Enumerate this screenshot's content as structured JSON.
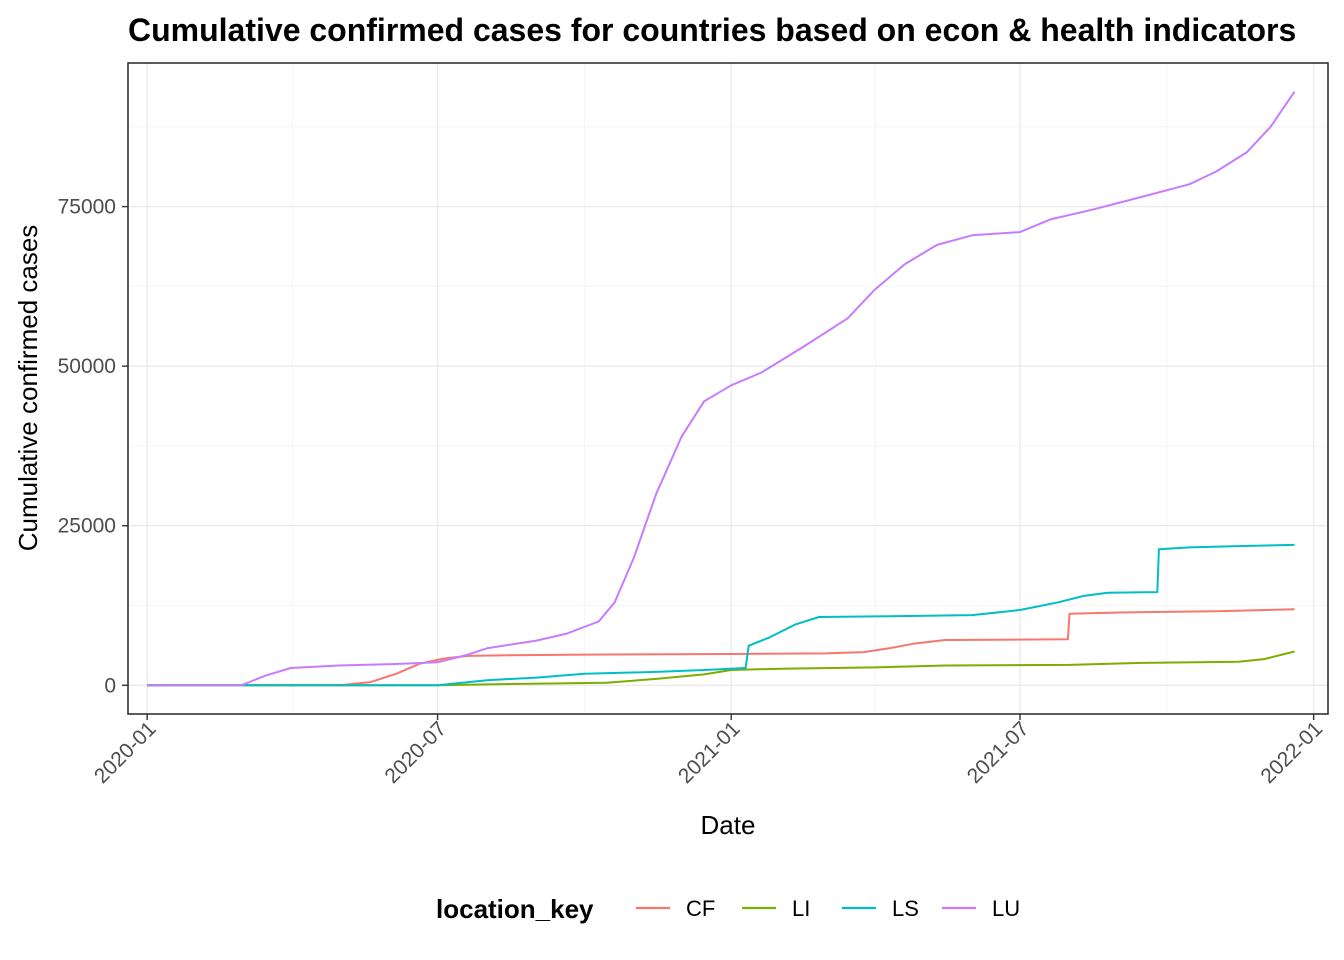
{
  "chart_data": {
    "type": "line",
    "title": "Cumulative confirmed cases for countries based on econ & health indicators",
    "xlabel": "Date",
    "ylabel": "Cumulative confirmed cases",
    "x_ticks": [
      "2020-01",
      "2020-07",
      "2021-01",
      "2021-07",
      "2022-01"
    ],
    "y_ticks": [
      0,
      25000,
      50000,
      75000
    ],
    "y_tick_labels": [
      "0",
      "25000",
      "50000",
      "75000"
    ],
    "xlim": [
      "2019-12-20",
      "2022-01-10"
    ],
    "ylim": [
      -4500,
      97500
    ],
    "grid": true,
    "legend": {
      "title": "location_key",
      "position": "bottom",
      "entries": [
        "CF",
        "LI",
        "LS",
        "LU"
      ]
    },
    "series": [
      {
        "name": "CF",
        "color": "#F8766D",
        "points": [
          [
            "2020-01-01",
            0
          ],
          [
            "2020-05-01",
            0
          ],
          [
            "2020-05-20",
            500
          ],
          [
            "2020-06-05",
            1800
          ],
          [
            "2020-06-20",
            3400
          ],
          [
            "2020-07-05",
            4200
          ],
          [
            "2020-07-20",
            4600
          ],
          [
            "2020-08-15",
            4700
          ],
          [
            "2020-10-01",
            4800
          ],
          [
            "2020-12-31",
            4900
          ],
          [
            "2021-03-01",
            5000
          ],
          [
            "2021-03-25",
            5200
          ],
          [
            "2021-04-10",
            5800
          ],
          [
            "2021-04-25",
            6500
          ],
          [
            "2021-05-15",
            7100
          ],
          [
            "2021-07-31",
            7200
          ],
          [
            "2021-08-01",
            11200
          ],
          [
            "2021-09-01",
            11400
          ],
          [
            "2021-11-01",
            11600
          ],
          [
            "2021-12-20",
            11900
          ]
        ]
      },
      {
        "name": "LI",
        "color": "#7CAE00",
        "points": [
          [
            "2020-01-01",
            0
          ],
          [
            "2020-07-01",
            0
          ],
          [
            "2020-08-15",
            200
          ],
          [
            "2020-10-15",
            400
          ],
          [
            "2020-11-15",
            1000
          ],
          [
            "2020-12-15",
            1700
          ],
          [
            "2021-01-01",
            2400
          ],
          [
            "2021-02-01",
            2600
          ],
          [
            "2021-04-01",
            2800
          ],
          [
            "2021-05-15",
            3100
          ],
          [
            "2021-08-01",
            3200
          ],
          [
            "2021-09-15",
            3500
          ],
          [
            "2021-11-15",
            3700
          ],
          [
            "2021-12-01",
            4100
          ],
          [
            "2021-12-20",
            5300
          ]
        ]
      },
      {
        "name": "LS",
        "color": "#00BFC4",
        "points": [
          [
            "2020-01-01",
            0
          ],
          [
            "2020-05-12",
            0
          ],
          [
            "2020-07-01",
            0
          ],
          [
            "2020-08-01",
            800
          ],
          [
            "2020-09-01",
            1200
          ],
          [
            "2020-10-01",
            1800
          ],
          [
            "2020-11-15",
            2100
          ],
          [
            "2020-12-15",
            2400
          ],
          [
            "2021-01-10",
            2700
          ],
          [
            "2021-01-12",
            6200
          ],
          [
            "2021-01-25",
            7500
          ],
          [
            "2021-02-10",
            9500
          ],
          [
            "2021-02-25",
            10700
          ],
          [
            "2021-04-01",
            10800
          ],
          [
            "2021-06-01",
            11000
          ],
          [
            "2021-07-01",
            11800
          ],
          [
            "2021-07-25",
            13000
          ],
          [
            "2021-08-10",
            14000
          ],
          [
            "2021-08-25",
            14500
          ],
          [
            "2021-09-25",
            14600
          ],
          [
            "2021-09-26",
            21300
          ],
          [
            "2021-10-15",
            21600
          ],
          [
            "2021-11-15",
            21800
          ],
          [
            "2021-12-20",
            22000
          ]
        ]
      },
      {
        "name": "LU",
        "color": "#C77CFF",
        "points": [
          [
            "2020-01-01",
            0
          ],
          [
            "2020-02-29",
            0
          ],
          [
            "2020-03-15",
            1500
          ],
          [
            "2020-03-31",
            2700
          ],
          [
            "2020-04-30",
            3100
          ],
          [
            "2020-06-01",
            3300
          ],
          [
            "2020-07-01",
            3600
          ],
          [
            "2020-07-20",
            4800
          ],
          [
            "2020-08-01",
            5800
          ],
          [
            "2020-09-01",
            7000
          ],
          [
            "2020-09-20",
            8100
          ],
          [
            "2020-10-10",
            10000
          ],
          [
            "2020-10-20",
            13000
          ],
          [
            "2020-11-01",
            20000
          ],
          [
            "2020-11-15",
            30000
          ],
          [
            "2020-12-01",
            39000
          ],
          [
            "2020-12-15",
            44500
          ],
          [
            "2021-01-01",
            47000
          ],
          [
            "2021-01-20",
            49000
          ],
          [
            "2021-02-15",
            53000
          ],
          [
            "2021-03-15",
            57500
          ],
          [
            "2021-04-01",
            62000
          ],
          [
            "2021-04-20",
            66000
          ],
          [
            "2021-05-10",
            69000
          ],
          [
            "2021-06-01",
            70500
          ],
          [
            "2021-07-01",
            71000
          ],
          [
            "2021-07-20",
            73000
          ],
          [
            "2021-08-15",
            74500
          ],
          [
            "2021-09-15",
            76500
          ],
          [
            "2021-10-15",
            78500
          ],
          [
            "2021-11-01",
            80500
          ],
          [
            "2021-11-20",
            83500
          ],
          [
            "2021-12-05",
            87500
          ],
          [
            "2021-12-20",
            93000
          ]
        ]
      }
    ]
  }
}
